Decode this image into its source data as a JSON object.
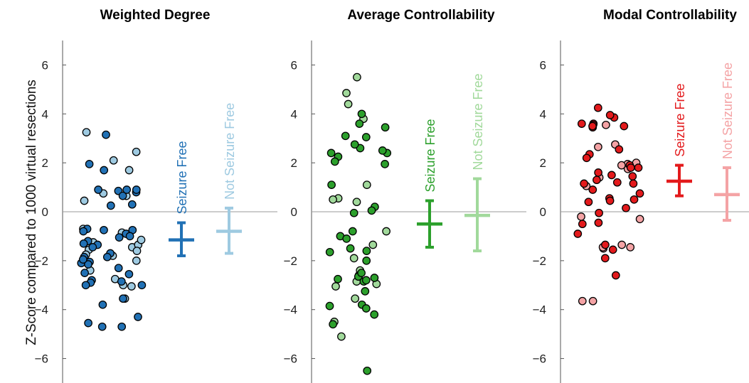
{
  "ylabel": "Z-Score compared to 1000 virtual resections",
  "chart_data": [
    {
      "type": "scatter",
      "title": "Weighted Degree",
      "ylim": [
        -7,
        7
      ],
      "yticks": [
        6,
        4,
        2,
        0,
        -2,
        -4,
        -6
      ],
      "colors": {
        "seizure_free": "#2171b5",
        "not_seizure_free": "#9ecae1"
      },
      "group_labels": [
        "Seizure Free",
        "Not Seizure Free"
      ],
      "summary": [
        {
          "name": "Seizure Free",
          "mean": -1.15,
          "low": -1.8,
          "high": -0.45
        },
        {
          "name": "Not Seizure Free",
          "mean": -0.8,
          "low": -1.7,
          "high": 0.15
        }
      ],
      "points_seizure_free": [
        3.15,
        0.9,
        0.8,
        0.85,
        0.9,
        0.65,
        -0.7,
        -0.75,
        -0.8,
        -1.35,
        -0.9,
        -1.05,
        -1.2,
        -1.3,
        -1.45,
        -1.7,
        -1.85,
        -2.05,
        -2.1,
        -2.15,
        -2.3,
        -2.55,
        -2.8,
        -2.9,
        -3.0,
        -3.0,
        -1.85,
        -1.0,
        -0.75,
        0.9,
        0.3,
        0.25,
        1.95,
        1.7,
        -3.55,
        -4.3,
        -4.55,
        -4.7,
        -4.7,
        -3.8,
        -2.85,
        -2.5,
        -1.95
      ],
      "points_not_seizure_free": [
        3.25,
        2.45,
        2.1,
        1.7,
        0.75,
        0.65,
        -0.7,
        -1.45,
        -1.35,
        -1.55,
        -1.6,
        -1.75,
        -1.8,
        -2.0,
        -2.75,
        -3.0,
        -3.05,
        -3.55,
        -1.15,
        -1.25,
        -0.85,
        -2.4,
        0.45
      ]
    },
    {
      "type": "scatter",
      "title": "Average Controllability",
      "ylim": [
        -7,
        7
      ],
      "yticks": [
        6,
        4,
        2,
        0,
        -2,
        -4,
        -6
      ],
      "colors": {
        "seizure_free": "#2ca02c",
        "not_seizure_free": "#a1d99b"
      },
      "group_labels": [
        "Seizure Free",
        "Not Seizure Free"
      ],
      "summary": [
        {
          "name": "Seizure Free",
          "mean": -0.5,
          "low": -1.45,
          "high": 0.45
        },
        {
          "name": "Not Seizure Free",
          "mean": -0.15,
          "low": -1.6,
          "high": 1.35
        }
      ],
      "points_seizure_free": [
        2.6,
        1.95,
        0.2,
        -1.6,
        -2.65,
        -2.85,
        2.25,
        2.75,
        3.1,
        3.6,
        2.4,
        2.4,
        2.05,
        1.1,
        0.05,
        -0.05,
        -1.0,
        -1.5,
        -1.65,
        -2.0,
        -2.5,
        -2.7,
        -2.75,
        -2.8,
        -3.25,
        -3.8,
        -3.95,
        -4.2,
        -4.6,
        -6.5,
        -3.85,
        -1.1,
        -0.8,
        2.5,
        3.05,
        3.45,
        4.0
      ],
      "points_not_seizure_free": [
        5.5,
        4.4,
        4.85,
        3.8,
        1.1,
        0.55,
        0.5,
        0.4,
        -0.8,
        -1.35,
        -1.9,
        -2.4,
        -2.6,
        -2.85,
        -2.95,
        -3.05,
        -3.55,
        -4.5,
        -5.1
      ]
    },
    {
      "type": "scatter",
      "title": "Modal Controllability",
      "ylim": [
        -7,
        7
      ],
      "yticks": [
        6,
        4,
        2,
        0,
        -2,
        -4,
        -6
      ],
      "colors": {
        "seizure_free": "#e31a1c",
        "not_seizure_free": "#f4a3a5"
      },
      "group_labels": [
        "Seizure Free",
        "Not Seizure Free"
      ],
      "summary": [
        {
          "name": "Seizure Free",
          "mean": 1.25,
          "low": 0.65,
          "high": 1.9
        },
        {
          "name": "Not Seizure Free",
          "mean": 0.7,
          "low": -0.35,
          "high": 1.8
        }
      ],
      "points_seizure_free": [
        3.85,
        3.95,
        3.6,
        3.55,
        3.45,
        3.6,
        3.5,
        4.25,
        3.5,
        2.55,
        2.35,
        2.2,
        1.9,
        1.8,
        1.6,
        1.5,
        1.45,
        1.3,
        1.2,
        1.15,
        0.9,
        0.75,
        0.55,
        0.45,
        0.4,
        0.15,
        -0.05,
        -0.45,
        -0.5,
        -0.9,
        -1.35,
        -1.55,
        -1.9,
        -2.6,
        1.15,
        0.5,
        1.8
      ],
      "points_not_seizure_free": [
        3.55,
        2.75,
        2.0,
        1.95,
        1.75,
        1.4,
        1.05,
        1.9,
        -0.2,
        -0.3,
        -1.35,
        -1.45,
        -1.5,
        -1.45,
        -3.65,
        -3.65,
        2.65
      ]
    }
  ]
}
